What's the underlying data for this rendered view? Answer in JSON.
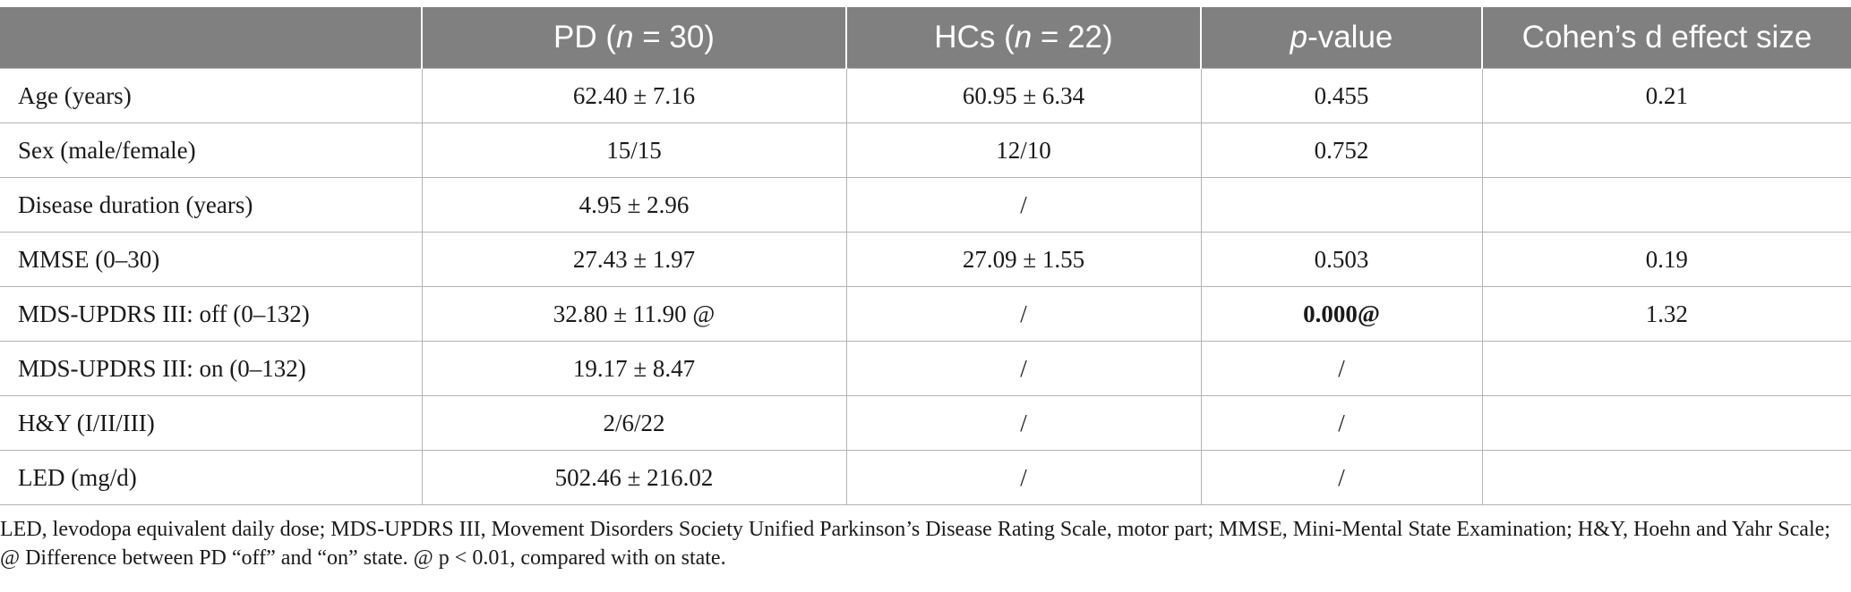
{
  "header": {
    "col0": "",
    "col1_pre": "PD (",
    "col1_n": "n",
    "col1_post": " = 30)",
    "col2_pre": "HCs (",
    "col2_n": "n",
    "col2_post": " = 22)",
    "col3_p": "p",
    "col3_post": "-value",
    "col4": "Cohen’s d effect size"
  },
  "rows": [
    {
      "label": "Age (years)",
      "pd": "62.40 ± 7.16",
      "hc": "60.95 ± 6.34",
      "p": "0.455",
      "d": "0.21"
    },
    {
      "label": "Sex (male/female)",
      "pd": "15/15",
      "hc": "12/10",
      "p": "0.752",
      "d": ""
    },
    {
      "label": "Disease duration (years)",
      "pd": "4.95 ± 2.96",
      "hc": "/",
      "p": "",
      "d": ""
    },
    {
      "label": "MMSE (0–30)",
      "pd": "27.43 ± 1.97",
      "hc": "27.09 ± 1.55",
      "p": "0.503",
      "d": "0.19"
    },
    {
      "label": "MDS-UPDRS III: off (0–132)",
      "pd": "32.80 ± 11.90 @",
      "hc": "/",
      "p": "0.000@",
      "d": "1.32"
    },
    {
      "label": "MDS-UPDRS III: on (0–132)",
      "pd": "19.17 ± 8.47",
      "hc": "/",
      "p": "/",
      "d": ""
    },
    {
      "label": "H&Y (I/II/III)",
      "pd": "2/6/22",
      "hc": "/",
      "p": "/",
      "d": ""
    },
    {
      "label": "LED (mg/d)",
      "pd": "502.46 ± 216.02",
      "hc": "/",
      "p": "/",
      "d": ""
    }
  ],
  "footnote": "LED, levodopa equivalent daily dose; MDS-UPDRS III, Movement Disorders Society Unified Parkinson’s Disease Rating Scale, motor part; MMSE, Mini-Mental State Examination; H&Y, Hoehn and Yahr Scale; @ Difference between PD “off” and “on” state. @ p < 0.01, compared with on state."
}
